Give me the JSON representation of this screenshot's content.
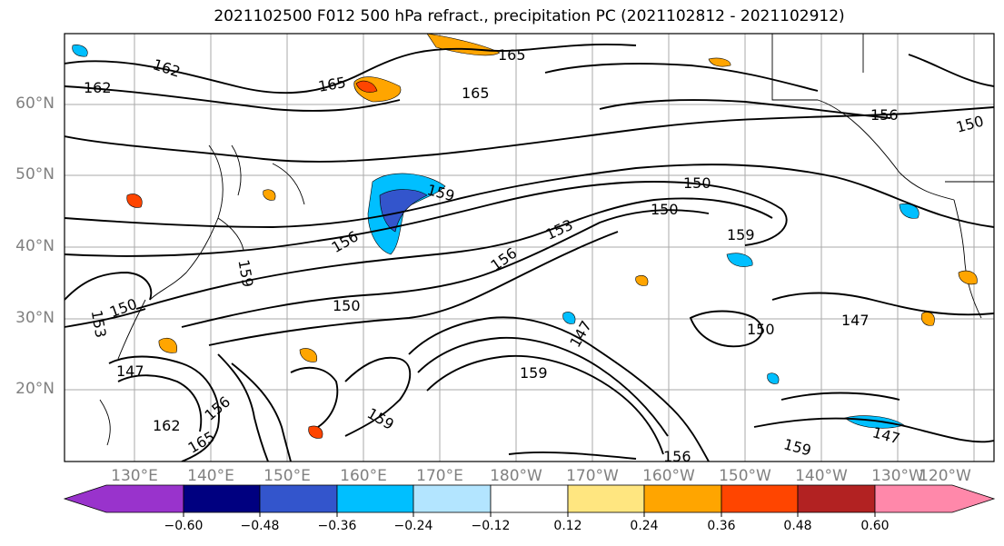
{
  "title": "2021102500 F012 500 hPa refract., precipitation PC (2021102812 - 2021102912)",
  "lat_labels": [
    "60°N",
    "50°N",
    "40°N",
    "30°N",
    "20°N"
  ],
  "lon_labels": [
    "130°E",
    "140°E",
    "150°E",
    "160°E",
    "170°E",
    "180°W",
    "170°W",
    "160°W",
    "150°W",
    "140°W",
    "130°W",
    "120°W"
  ],
  "contour_labels": [
    "162",
    "162",
    "165",
    "165",
    "165",
    "156",
    "150",
    "150",
    "150",
    "159",
    "156",
    "153",
    "156",
    "159",
    "150",
    "153",
    "159",
    "150",
    "147",
    "150",
    "147",
    "147",
    "159",
    "159",
    "165",
    "162",
    "156",
    "159",
    "147",
    "156"
  ],
  "colorbar": {
    "ticks": [
      "−0.60",
      "−0.48",
      "−0.36",
      "−0.24",
      "−0.12",
      "0.12",
      "0.24",
      "0.36",
      "0.48",
      "0.60"
    ],
    "colors": [
      "#9933cc",
      "#000080",
      "#3355cc",
      "#00bfff",
      "#b3e5ff",
      "#ffffff",
      "#ffe680",
      "#ffa500",
      "#ff4500",
      "#b22222",
      "#ff88aa"
    ]
  }
}
